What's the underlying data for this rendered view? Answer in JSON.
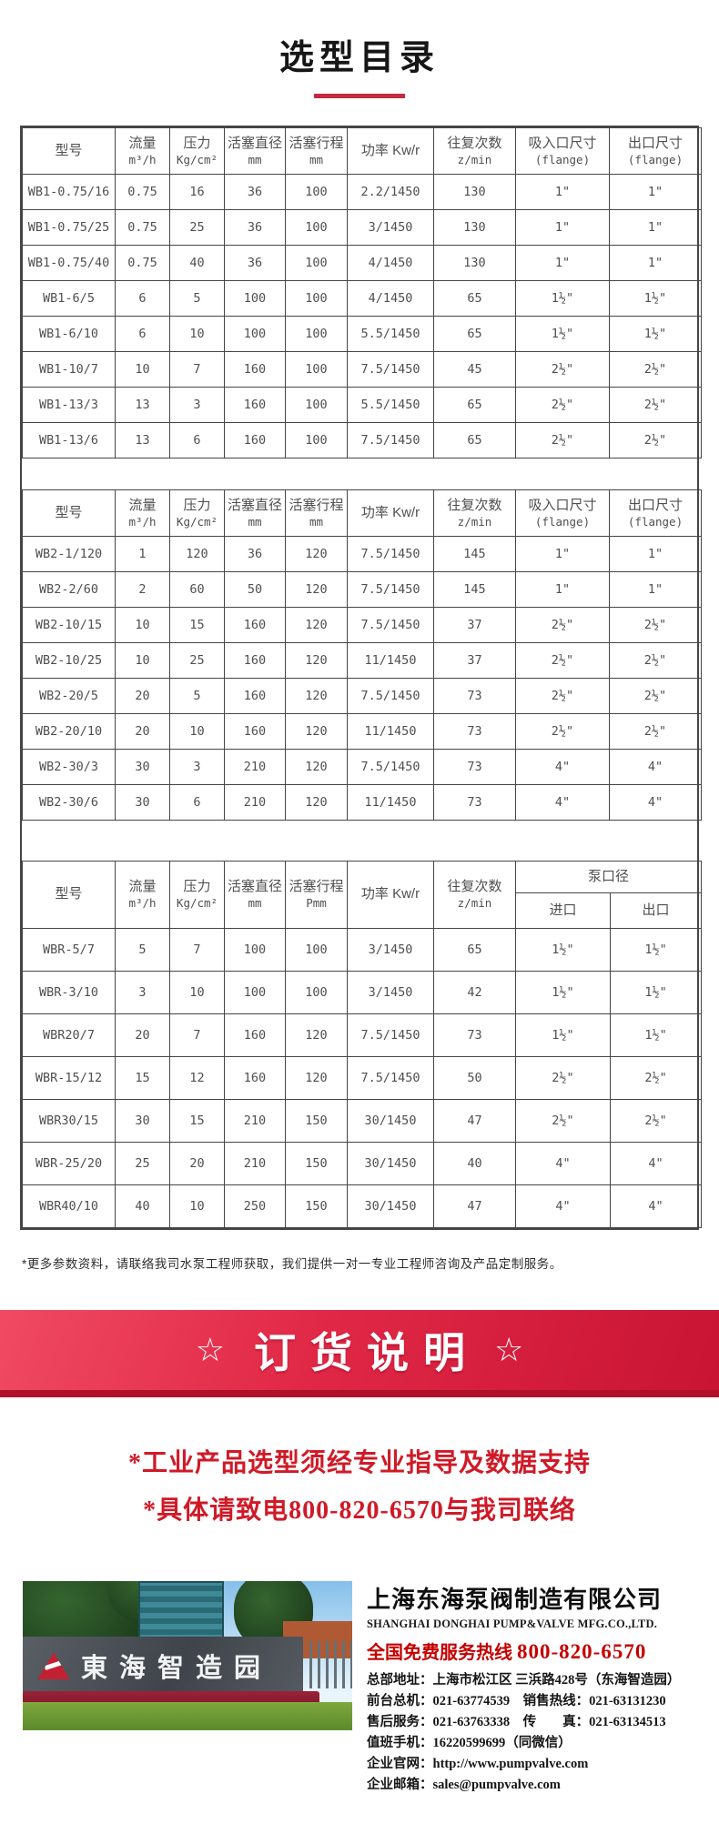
{
  "page_title": "选型目录",
  "catalog": {
    "columns": {
      "model": "型号",
      "flow_label": "流量",
      "flow_unit": "m³/h",
      "pressure_label": "压力",
      "pressure_unit": "Kg/cm²",
      "piston_diameter_label": "活塞直径",
      "piston_diameter_unit": "mm",
      "piston_stroke_label": "活塞行程",
      "piston_stroke_unit": "mm",
      "piston_stroke_unit_wbr": "Pmm",
      "power_label": "功率 Kw/r",
      "reciprocation_label": "往复次数",
      "reciprocation_unit": "z/min",
      "suction_label": "吸入口尺寸",
      "suction_unit": "(flange)",
      "outlet_label": "出口尺寸",
      "outlet_unit": "(flange)",
      "pump_port_label": "泵口径",
      "port_inlet": "进口",
      "port_outlet": "出口"
    },
    "wb1_rows": [
      [
        "WB1-0.75/16",
        "0.75",
        "16",
        "36",
        "100",
        "2.2/1450",
        "130",
        "1\"",
        "1\""
      ],
      [
        "WB1-0.75/25",
        "0.75",
        "25",
        "36",
        "100",
        "3/1450",
        "130",
        "1\"",
        "1\""
      ],
      [
        "WB1-0.75/40",
        "0.75",
        "40",
        "36",
        "100",
        "4/1450",
        "130",
        "1\"",
        "1\""
      ],
      [
        "WB1-6/5",
        "6",
        "5",
        "100",
        "100",
        "4/1450",
        "65",
        "1½\"",
        "1½\""
      ],
      [
        "WB1-6/10",
        "6",
        "10",
        "100",
        "100",
        "5.5/1450",
        "65",
        "1½\"",
        "1½\""
      ],
      [
        "WB1-10/7",
        "10",
        "7",
        "160",
        "100",
        "7.5/1450",
        "45",
        "2½\"",
        "2½\""
      ],
      [
        "WB1-13/3",
        "13",
        "3",
        "160",
        "100",
        "5.5/1450",
        "65",
        "2½\"",
        "2½\""
      ],
      [
        "WB1-13/6",
        "13",
        "6",
        "160",
        "100",
        "7.5/1450",
        "65",
        "2½\"",
        "2½\""
      ]
    ],
    "wb2_rows": [
      [
        "WB2-1/120",
        "1",
        "120",
        "36",
        "120",
        "7.5/1450",
        "145",
        "1\"",
        "1\""
      ],
      [
        "WB2-2/60",
        "2",
        "60",
        "50",
        "120",
        "7.5/1450",
        "145",
        "1\"",
        "1\""
      ],
      [
        "WB2-10/15",
        "10",
        "15",
        "160",
        "120",
        "7.5/1450",
        "37",
        "2½\"",
        "2½\""
      ],
      [
        "WB2-10/25",
        "10",
        "25",
        "160",
        "120",
        "11/1450",
        "37",
        "2½\"",
        "2½\""
      ],
      [
        "WB2-20/5",
        "20",
        "5",
        "160",
        "120",
        "7.5/1450",
        "73",
        "2½\"",
        "2½\""
      ],
      [
        "WB2-20/10",
        "20",
        "10",
        "160",
        "120",
        "11/1450",
        "73",
        "2½\"",
        "2½\""
      ],
      [
        "WB2-30/3",
        "30",
        "3",
        "210",
        "120",
        "7.5/1450",
        "73",
        "4\"",
        "4\""
      ],
      [
        "WB2-30/6",
        "30",
        "6",
        "210",
        "120",
        "11/1450",
        "73",
        "4\"",
        "4\""
      ]
    ],
    "wbr_rows": [
      [
        "WBR-5/7",
        "5",
        "7",
        "100",
        "100",
        "3/1450",
        "65",
        "1½\"",
        "1½\""
      ],
      [
        "WBR-3/10",
        "3",
        "10",
        "100",
        "100",
        "3/1450",
        "42",
        "1½\"",
        "1½\""
      ],
      [
        "WBR20/7",
        "20",
        "7",
        "160",
        "120",
        "7.5/1450",
        "73",
        "1½\"",
        "1½\""
      ],
      [
        "WBR-15/12",
        "15",
        "12",
        "160",
        "120",
        "7.5/1450",
        "50",
        "2½\"",
        "2½\""
      ],
      [
        "WBR30/15",
        "30",
        "15",
        "210",
        "150",
        "30/1450",
        "47",
        "2½\"",
        "2½\""
      ],
      [
        "WBR-25/20",
        "25",
        "20",
        "210",
        "150",
        "30/1450",
        "40",
        "4\"",
        "4\""
      ],
      [
        "WBR40/10",
        "40",
        "10",
        "250",
        "150",
        "30/1450",
        "47",
        "4\"",
        "4\""
      ]
    ],
    "footnote": "*更多参数资料，请联络我司水泵工程师获取，我们提供一对一专业工程师咨询及产品定制服务。"
  },
  "order_banner": {
    "star_left": "☆",
    "title": "订货说明",
    "star_right": "☆"
  },
  "notices": {
    "line1": "*工业产品选型须经专业指导及数据支持",
    "line2": "*具体请致电800-820-6570与我司联络"
  },
  "footer": {
    "photo_sign": "東海智造园",
    "company_cn": "上海东海泵阀制造有限公司",
    "company_en": "SHANGHAI DONGHAI PUMP&VALVE MFG.CO.,LTD.",
    "hotline_label": "全国免费服务热线",
    "hotline_number": "800-820-6570",
    "contact_lines": [
      "总部地址：上海市松江区 三浜路428号（东海智造园）",
      "前台总机：021-63774539　销售热线：021-63131230",
      "售后服务：021-63763338　传　　真：021-63134513",
      "值班手机：16220599699（同微信）",
      "企业官网：http://www.pumpvalve.com",
      "企业邮箱：sales@pumpvalve.com"
    ]
  },
  "colors": {
    "accent_red": "#c52a3c",
    "banner_red": "#e02746",
    "notice_red": "#d01a27",
    "hotline_red": "#c40000"
  }
}
